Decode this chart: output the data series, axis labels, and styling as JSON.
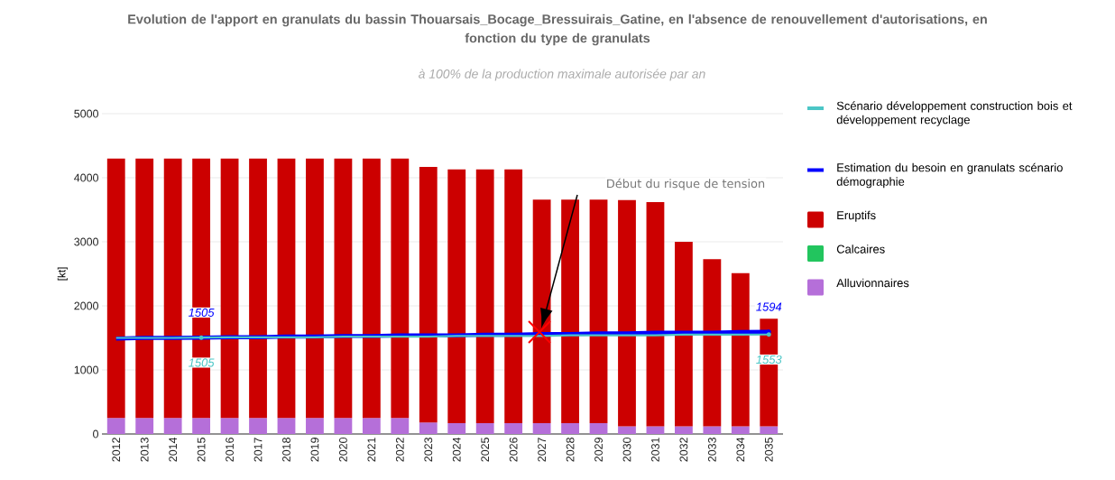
{
  "chart_data": {
    "type": "bar",
    "stacked": true,
    "title": "Evolution de l'apport en granulats du bassin Thouarsais_Bocage_Bressuirais_Gatine, en l'absence de renouvellement d'autorisations, en fonction du type de granulats",
    "subtitle": "à 100% de la production maximale autorisée par an",
    "ylabel": "[kt]",
    "categories": [
      "2012",
      "2013",
      "2014",
      "2015",
      "2016",
      "2017",
      "2018",
      "2019",
      "2020",
      "2021",
      "2022",
      "2023",
      "2024",
      "2025",
      "2026",
      "2027",
      "2028",
      "2029",
      "2030",
      "2031",
      "2032",
      "2033",
      "2034",
      "2035"
    ],
    "series": [
      {
        "name": "Scénario développement construction bois et développement recyclage",
        "type": "line",
        "color": "#4bc6c6",
        "values": [
          1500,
          1500,
          1500,
          1505,
          1510,
          1510,
          1510,
          1510,
          1520,
          1520,
          1520,
          1520,
          1530,
          1530,
          1530,
          1530,
          1540,
          1540,
          1540,
          1540,
          1550,
          1550,
          1550,
          1553
        ],
        "value_labels": [
          null,
          null,
          null,
          "1505",
          null,
          null,
          null,
          null,
          null,
          null,
          null,
          null,
          null,
          null,
          null,
          null,
          null,
          null,
          null,
          null,
          null,
          null,
          null,
          "1553"
        ]
      },
      {
        "name": "Estimation du besoin en granulats scénario démographie",
        "type": "line",
        "color": "#0000ff",
        "values": [
          1490,
          1500,
          1500,
          1505,
          1510,
          1510,
          1520,
          1520,
          1530,
          1530,
          1540,
          1540,
          1540,
          1550,
          1550,
          1560,
          1560,
          1570,
          1570,
          1580,
          1580,
          1580,
          1590,
          1594
        ],
        "value_labels": [
          null,
          null,
          null,
          "1505",
          null,
          null,
          null,
          null,
          null,
          null,
          null,
          null,
          null,
          null,
          null,
          null,
          null,
          null,
          null,
          null,
          null,
          null,
          null,
          "1594"
        ]
      },
      {
        "name": "Alluvionnaires",
        "color": "#b56fd9",
        "values": [
          250,
          250,
          250,
          250,
          250,
          250,
          250,
          250,
          250,
          250,
          250,
          180,
          170,
          170,
          170,
          170,
          170,
          170,
          120,
          120,
          120,
          120,
          120,
          120
        ]
      },
      {
        "name": "Calcaires",
        "color": "#22c55e",
        "values": [
          0,
          0,
          0,
          0,
          0,
          0,
          0,
          0,
          0,
          0,
          0,
          0,
          0,
          0,
          0,
          0,
          0,
          0,
          0,
          0,
          0,
          0,
          0,
          0
        ]
      },
      {
        "name": "Eruptifs",
        "color": "#cc0000",
        "values": [
          4050,
          4050,
          4050,
          4050,
          4050,
          4050,
          4050,
          4050,
          4050,
          4050,
          4050,
          3990,
          3960,
          3960,
          3960,
          3490,
          3490,
          3490,
          3530,
          3500,
          2880,
          2610,
          2390,
          1680
        ]
      }
    ],
    "ylim": [
      0,
      5000
    ],
    "yticks": [
      0,
      1000,
      2000,
      3000,
      4000,
      5000
    ],
    "grid": "y",
    "legend": "right",
    "annotations": [
      "Début du risque de tension"
    ]
  }
}
